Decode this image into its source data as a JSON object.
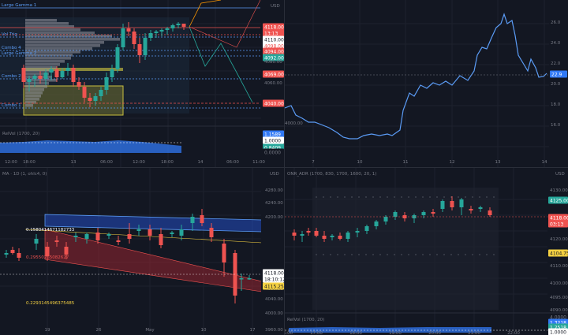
{
  "colors": {
    "up": "#26a69a",
    "down": "#ef5350",
    "grid": "#1e222d",
    "axis": "#787b86",
    "line": "#3179f5",
    "level": "#5b9cf6"
  },
  "p1": {
    "levels": [
      {
        "label": "Large Gamma 1",
        "color": "#5b9cf6"
      },
      {
        "label": "Vol Trig",
        "color": "#5b9cf6"
      },
      {
        "label": "Combo 4",
        "color": "#5b9cf6"
      },
      {
        "label": "Large Gamma 2",
        "color": "#5b9cf6"
      },
      {
        "label": "Combo 2",
        "color": "#5b9cf6"
      },
      {
        "label": "Combo 1",
        "color": "#5b9cf6"
      }
    ],
    "currency": "USD",
    "price_tags": [
      {
        "text": "4118.00",
        "bg": "#ef5350",
        "fg": "#ffffff"
      },
      {
        "text": "13:13",
        "bg": "#ef5350",
        "fg": "#ffffff"
      },
      {
        "text": "4110.00",
        "bg": "#ffffff",
        "fg": "#131722"
      },
      {
        "text": "4098.00",
        "bg": "#ffffff",
        "fg": "#ef5350"
      },
      {
        "text": "4094.00",
        "bg": "#ef5350",
        "fg": "#ffffff"
      },
      {
        "text": "4092.00",
        "bg": "#26a69a",
        "fg": "#ffffff"
      },
      {
        "text": "4069.00",
        "bg": "#ef5350",
        "fg": "#ffffff"
      },
      {
        "text": "4040.00",
        "bg": "#ef5350",
        "fg": "#ffffff"
      }
    ],
    "axis_ticks": [
      "4080.00",
      "4060.00"
    ],
    "indicator": "RelVol (1700, 20)",
    "ind_tags": [
      {
        "text": "1.1589",
        "bg": "#3179f5",
        "fg": "#ffffff"
      },
      {
        "text": "1.0000",
        "bg": "#ffffff",
        "fg": "#131722"
      },
      {
        "text": "0.8409",
        "bg": "#26a69a",
        "fg": "#ffffff"
      },
      {
        "text": "0.0000",
        "bg": "#131722",
        "fg": "#787b86"
      }
    ],
    "time_labels": [
      "12:00",
      "18:00",
      "13",
      "06:00",
      "12:00",
      "18:00",
      "14",
      "06:00",
      "11:00"
    ]
  },
  "p2": {
    "y_ticks": [
      "26.0",
      "24.0",
      "22.0",
      "20.0",
      "18.0",
      "16.0"
    ],
    "last_tag": {
      "text": "22.9",
      "bg": "#3179f5",
      "fg": "#ffffff"
    },
    "left_tick": "4000.00",
    "time_labels": [
      "7",
      "10",
      "11",
      "12",
      "13",
      "14"
    ]
  },
  "p3": {
    "title": "MA · 1D (1, ohlc4, 0)",
    "currency": "USD",
    "fib_labels": [
      {
        "text": "0.1580414671182733",
        "color": "#ffffff"
      },
      {
        "text": "0.29550265082627",
        "color": "#ef5350"
      },
      {
        "text": "0.2293145496375485",
        "color": "#f5d142"
      }
    ],
    "y_ticks": [
      "4280.00",
      "4240.00",
      "4200.00",
      "4080.00",
      "4040.00",
      "4000.00",
      "3960.00"
    ],
    "price_tags": [
      {
        "text": "4118.00",
        "bg": "#ffffff",
        "fg": "#131722"
      },
      {
        "text": "18:10:12",
        "bg": "#ffffff",
        "fg": "#131722"
      },
      {
        "text": "4115.25",
        "bg": "#f5d142",
        "fg": "#131722"
      }
    ],
    "time_labels": [
      "19",
      "26",
      "May",
      "10",
      "17"
    ]
  },
  "p4": {
    "title": "ONR_ADR (1700, 830, 1700, 1600, 20, 1)",
    "currency": "USD",
    "y_ticks": [
      "4130.00",
      "4120.00",
      "4110.00",
      "4100.00",
      "4095.00",
      "4090.00"
    ],
    "price_tags": [
      {
        "text": "4125.00",
        "bg": "#26a69a",
        "fg": "#ffffff"
      },
      {
        "text": "4118.00",
        "bg": "#ef5350",
        "fg": "#ffffff"
      },
      {
        "text": "03:13",
        "bg": "#ef5350",
        "fg": "#ffffff"
      },
      {
        "text": "4104.75",
        "bg": "#f5d142",
        "fg": "#131722"
      }
    ],
    "indicator": "RelVol (1700, 20)",
    "ind_tags": [
      {
        "text": "4.0000",
        "bg": "#131722",
        "fg": "#787b86"
      },
      {
        "text": "1.3218",
        "bg": "#3179f5",
        "fg": "#ffffff"
      },
      {
        "text": "1.2518",
        "bg": "#26a69a",
        "fg": "#ffffff"
      },
      {
        "text": "1.0000",
        "bg": "#ffffff",
        "fg": "#131722"
      }
    ],
    "time_labels": [
      "5:00",
      "17:00",
      "18:00",
      "19:00",
      "20:00",
      "21:00",
      "22:00"
    ]
  }
}
